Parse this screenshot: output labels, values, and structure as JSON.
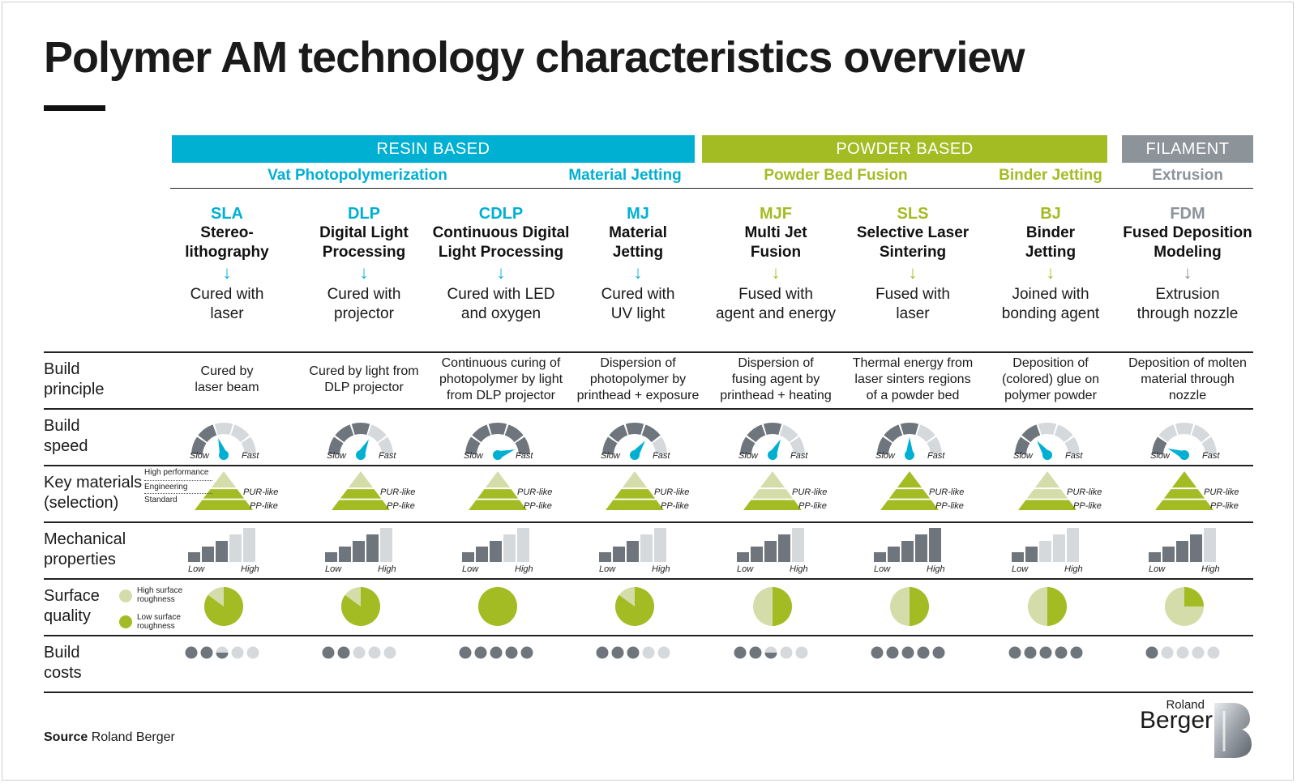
{
  "title": "Polymer AM technology characteristics overview",
  "colors": {
    "resin": "#00b0d3",
    "powder": "#a4bc24",
    "filament": "#8c9399",
    "dark": "#6e757c",
    "light": "#d5d9dc",
    "green": "#a4bc24",
    "lightgreen": "#d4ddaa"
  },
  "groups": [
    {
      "label": "RESIN BASED",
      "color": "resin"
    },
    {
      "label": "POWDER BASED",
      "color": "powder"
    },
    {
      "label": "FILAMENT",
      "color": "filament"
    }
  ],
  "subgroups": [
    {
      "label": "Vat Photopolymerization",
      "color": "resin"
    },
    {
      "label": "Material Jetting",
      "color": "resin"
    },
    {
      "label": "Powder Bed Fusion",
      "color": "powder"
    },
    {
      "label": "Binder Jetting",
      "color": "powder"
    },
    {
      "label": "Extrusion",
      "color": "filament"
    }
  ],
  "technologies": [
    {
      "abbr": "SLA",
      "name": "Stereo-\nlithography",
      "desc": "Cured with\nlaser",
      "principle": "Cured by\nlaser beam",
      "color": "resin",
      "speed": 0.4,
      "materials": [
        false,
        true,
        true
      ],
      "mech": 3,
      "surface": 0.85,
      "cost": 2.5
    },
    {
      "abbr": "DLP",
      "name": "Digital Light\nProcessing",
      "desc": "Cured with\nprojector",
      "principle": "Cured by light from\nDLP projector",
      "color": "resin",
      "speed": 0.65,
      "materials": [
        false,
        true,
        true
      ],
      "mech": 4,
      "surface": 0.85,
      "cost": 2
    },
    {
      "abbr": "CDLP",
      "name": "Continuous Digital\nLight Processing",
      "desc": "Cured with LED\nand oxygen",
      "principle": "Continuous curing of\nphotopolymer by light\nfrom DLP projector",
      "color": "resin",
      "speed": 0.9,
      "materials": [
        false,
        true,
        true
      ],
      "mech": 3,
      "surface": 1.0,
      "cost": 5
    },
    {
      "abbr": "MJ",
      "name": "Material\nJetting",
      "desc": "Cured with\nUV light",
      "principle": "Dispersion of\nphotopolymer by\nprinthead + exposure",
      "color": "resin",
      "speed": 0.7,
      "materials": [
        false,
        true,
        true
      ],
      "mech": 3,
      "surface": 0.85,
      "cost": 3
    },
    {
      "abbr": "MJF",
      "name": "Multi Jet\nFusion",
      "desc": "Fused with\nagent and energy",
      "principle": "Dispersion of\nfusing agent by\nprinthead + heating",
      "color": "powder",
      "speed": 0.65,
      "materials": [
        false,
        false,
        true
      ],
      "mech": 4,
      "surface": 0.5,
      "cost": 2.5
    },
    {
      "abbr": "SLS",
      "name": "Selective Laser\nSintering",
      "desc": "Fused with\nlaser",
      "principle": "Thermal energy from\nlaser sinters regions\nof a powder bed",
      "color": "powder",
      "speed": 0.5,
      "materials": [
        true,
        true,
        true
      ],
      "mech": 5,
      "surface": 0.5,
      "cost": 5
    },
    {
      "abbr": "BJ",
      "name": "Binder\nJetting",
      "desc": "Joined with\nbonding agent",
      "principle": "Deposition of\n(colored) glue on\npolymer powder",
      "color": "powder",
      "speed": 0.3,
      "materials": [
        false,
        false,
        true
      ],
      "mech": 2,
      "surface": 0.5,
      "cost": 5
    },
    {
      "abbr": "FDM",
      "name": "Fused Deposition\nModeling",
      "desc": "Extrusion\nthrough nozzle",
      "principle": "Deposition of molten\nmaterial through\nnozzle",
      "color": "filament",
      "speed": 0.12,
      "materials": [
        true,
        true,
        true
      ],
      "mech": 4,
      "surface": 0.25,
      "cost": 1
    }
  ],
  "rows": {
    "principle": "Build\nprinciple",
    "speed": "Build\nspeed",
    "materials": "Key materials\n(selection)",
    "mech": "Mechanical\nproperties",
    "surface": "Surface\nquality",
    "cost": "Build\ncosts"
  },
  "gauge_labels": {
    "slow": "Slow",
    "fast": "Fast"
  },
  "mech_labels": {
    "low": "Low",
    "high": "High"
  },
  "material_labels": {
    "pur": "PUR-like",
    "pp": "PP-like"
  },
  "material_legend": [
    "High performance",
    "Engineering",
    "Standard"
  ],
  "surface_legend": {
    "high": "High surface\nroughness",
    "low": "Low surface\nroughness"
  },
  "source_label": "Source",
  "source_text": "Roland Berger",
  "logo": {
    "line1": "Roland",
    "line2": "Berger"
  }
}
